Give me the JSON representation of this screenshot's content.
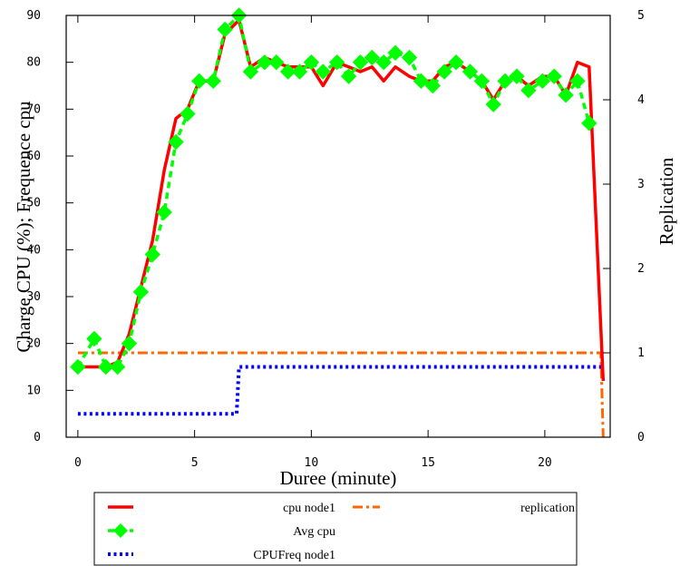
{
  "chart_data": {
    "type": "line",
    "xlabel": "Duree (minute)",
    "ylabel": "Charge CPU (%); Frequence cpu",
    "y2label": "Replication",
    "xlim": [
      -0.5,
      22.8
    ],
    "ylim": [
      0,
      90
    ],
    "y2lim": [
      0,
      5
    ],
    "x_ticks": [
      "0",
      "5",
      "10",
      "15",
      "20"
    ],
    "y_ticks": [
      "0",
      "10",
      "20",
      "30",
      "40",
      "50",
      "60",
      "70",
      "80",
      "90"
    ],
    "y2_ticks": [
      "0",
      "1",
      "2",
      "3",
      "4",
      "5"
    ],
    "legend_position": "below",
    "grid": false,
    "series": [
      {
        "name": "cpu node1",
        "color": "#ff0000",
        "style": "solid",
        "axis": "y1",
        "x": [
          0,
          0.6,
          1.2,
          1.7,
          2.2,
          2.7,
          3.2,
          3.7,
          4.2,
          4.7,
          5.2,
          5.8,
          6.3,
          6.9,
          7.4,
          8.0,
          8.5,
          9.0,
          9.5,
          10.0,
          10.5,
          11.1,
          11.6,
          12.1,
          12.6,
          13.1,
          13.6,
          14.2,
          14.7,
          15.2,
          15.7,
          16.2,
          16.8,
          17.3,
          17.8,
          18.3,
          18.8,
          19.3,
          19.9,
          20.4,
          20.9,
          21.4,
          21.9,
          22.5
        ],
        "values": [
          15,
          15,
          15,
          16,
          22,
          32,
          42,
          57,
          68,
          70,
          76,
          76,
          86,
          89,
          79,
          81,
          80,
          79,
          79,
          79,
          75,
          80,
          79,
          78,
          79,
          76,
          79,
          77,
          76,
          76,
          79,
          80,
          78,
          76,
          72,
          76,
          77,
          75,
          77,
          77,
          73,
          80,
          79,
          12
        ]
      },
      {
        "name": "Avg cpu",
        "color": "#00ff00",
        "style": "dashed-diamond",
        "axis": "y1",
        "x": [
          0,
          0.7,
          1.2,
          1.7,
          2.2,
          2.7,
          3.2,
          3.7,
          4.2,
          4.7,
          5.2,
          5.8,
          6.3,
          6.9,
          7.4,
          8.0,
          8.5,
          9.0,
          9.5,
          10.0,
          10.5,
          11.1,
          11.6,
          12.1,
          12.6,
          13.1,
          13.6,
          14.2,
          14.7,
          15.2,
          15.7,
          16.2,
          16.8,
          17.3,
          17.8,
          18.3,
          18.8,
          19.3,
          19.9,
          20.4,
          20.9,
          21.4,
          21.9
        ],
        "values": [
          15,
          21,
          15,
          15,
          20,
          31,
          39,
          48,
          63,
          69,
          76,
          76,
          87,
          90,
          78,
          80,
          80,
          78,
          78,
          80,
          78,
          80,
          77,
          80,
          81,
          80,
          82,
          81,
          76,
          75,
          78,
          80,
          78,
          76,
          71,
          76,
          77,
          74,
          76,
          77,
          73,
          76,
          67
        ]
      },
      {
        "name": "CPUFreq node1",
        "color": "#0000ff",
        "style": "dotted",
        "axis": "y1",
        "x": [
          0,
          6.8,
          6.9,
          22.5
        ],
        "values": [
          5,
          5,
          15,
          15
        ]
      },
      {
        "name": "replication",
        "color": "#ff6600",
        "style": "dash-dot",
        "axis": "y2",
        "x": [
          0,
          22.4,
          22.5
        ],
        "values": [
          1,
          1,
          0
        ]
      }
    ]
  }
}
